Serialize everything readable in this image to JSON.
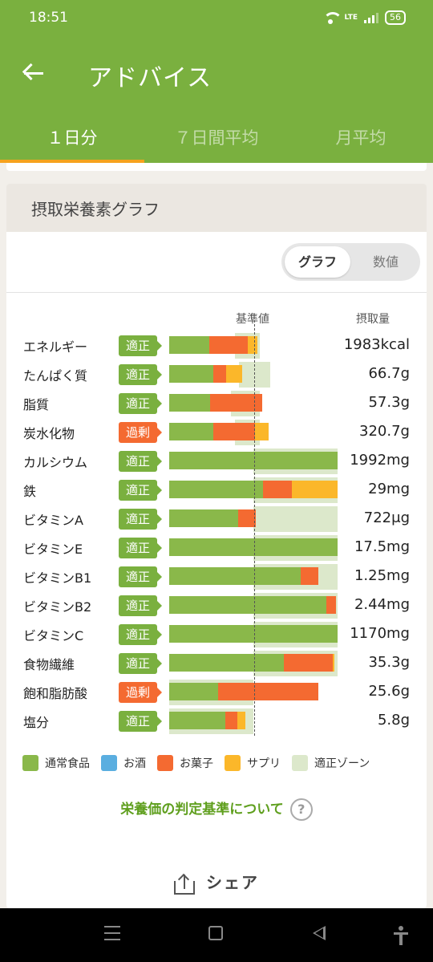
{
  "status_bar": {
    "time": "18:51",
    "network": "LTE",
    "battery": "56"
  },
  "app_bar": {
    "title": "アドバイス"
  },
  "tabs": [
    {
      "label": "１日分",
      "active": true
    },
    {
      "label": "７日間平均",
      "active": false
    },
    {
      "label": "月平均",
      "active": false
    }
  ],
  "card": {
    "title": "摂取栄養素グラフ",
    "toggle": {
      "graph": "グラフ",
      "numeric": "数値",
      "selected": "グラフ"
    },
    "header_standard": "基準値",
    "header_intake": "摂取量"
  },
  "chart_data": {
    "type": "bar",
    "stacked": true,
    "orientation": "horizontal",
    "categories": [
      "エネルギー",
      "たんぱく質",
      "脂質",
      "炭水化物",
      "カルシウム",
      "鉄",
      "ビタミンA",
      "ビタミンE",
      "ビタミンB1",
      "ビタミンB2",
      "ビタミンC",
      "食物繊維",
      "飽和脂肪酸",
      "塩分"
    ],
    "status": [
      "適正",
      "適正",
      "適正",
      "過剰",
      "適正",
      "適正",
      "適正",
      "適正",
      "適正",
      "適正",
      "適正",
      "適正",
      "過剰",
      "適正"
    ],
    "intake_labels": [
      "1983kcal",
      "66.7g",
      "57.3g",
      "320.7g",
      "1992mg",
      "29mg",
      "722μg",
      "17.5mg",
      "1.25mg",
      "2.44mg",
      "1170mg",
      "35.3g",
      "25.6g",
      "5.8g"
    ],
    "series": [
      {
        "name": "通常食品",
        "values": [
          0.48,
          0.52,
          0.49,
          0.52,
          2.0,
          1.11,
          0.82,
          2.0,
          1.56,
          1.87,
          2.0,
          1.36,
          0.58,
          0.67
        ]
      },
      {
        "name": "お酒",
        "values": [
          0,
          0,
          0,
          0,
          0,
          0,
          0,
          0,
          0,
          0,
          0,
          0,
          0,
          0
        ]
      },
      {
        "name": "お菓子",
        "values": [
          0.45,
          0.16,
          0.61,
          0.5,
          0,
          0.35,
          0.21,
          0,
          0.21,
          0.11,
          0,
          0.58,
          1.19,
          0.14
        ]
      },
      {
        "name": "サプリ",
        "values": [
          0.12,
          0.19,
          0,
          0.16,
          0,
          0.54,
          0,
          0,
          0,
          0,
          0,
          0.02,
          0,
          0.09
        ]
      }
    ],
    "optimal_zone": [
      [
        0.78,
        1.08
      ],
      [
        0.83,
        1.2
      ],
      [
        0.73,
        1.08
      ],
      [
        0.78,
        1.08
      ],
      [
        1.0,
        2.0
      ],
      [
        1.0,
        2.0
      ],
      [
        1.0,
        2.0
      ],
      [
        1.0,
        2.0
      ],
      [
        1.0,
        2.0
      ],
      [
        1.0,
        2.0
      ],
      [
        1.0,
        2.0
      ],
      [
        1.0,
        2.0
      ],
      [
        0,
        1.0
      ],
      [
        0,
        1.0
      ]
    ],
    "reference_line": 1.0,
    "colors": {
      "通常食品": "#8ab84a",
      "お酒": "#5aaee0",
      "お菓子": "#f46a31",
      "サプリ": "#fbb72a",
      "適正ゾーン": "#dce8cb",
      "適正": "#7ab03f",
      "過剰": "#f46a31"
    }
  },
  "legend": [
    {
      "label": "通常食品",
      "color": "#8ab84a"
    },
    {
      "label": "お酒",
      "color": "#5aaee0"
    },
    {
      "label": "お菓子",
      "color": "#f46a31"
    },
    {
      "label": "サプリ",
      "color": "#fbb72a"
    },
    {
      "label": "適正ゾーン",
      "color": "#dce8cb"
    }
  ],
  "help_link": {
    "label": "栄養価の判定基準について",
    "icon": "?"
  },
  "share": {
    "label": "シェア"
  }
}
